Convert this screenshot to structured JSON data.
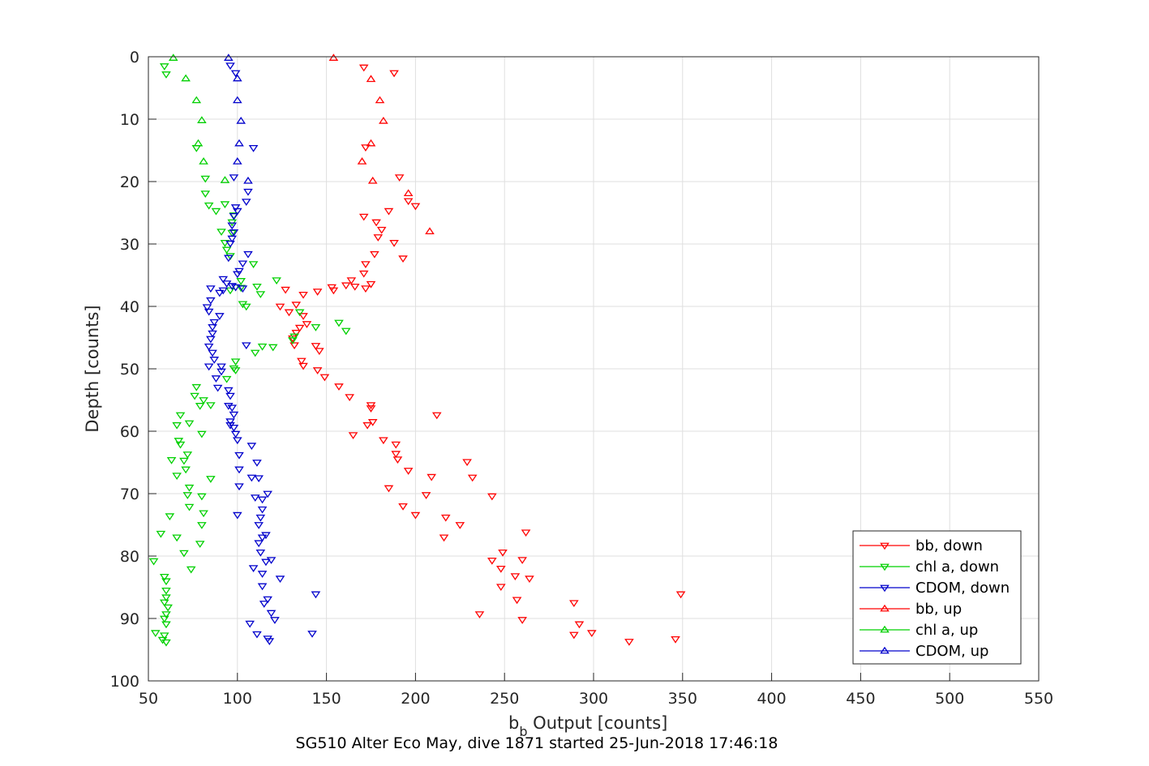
{
  "caption": "SG510 Alter Eco May, dive 1871 started 25-Jun-2018 17:46:18",
  "chart_data": {
    "type": "scatter",
    "xlabel_main": "b",
    "xlabel_sub": "b",
    "xlabel_rest": " Output [counts]",
    "ylabel": "Depth [counts]",
    "xlim": [
      50,
      550
    ],
    "ylim": [
      0,
      100
    ],
    "y_reversed": true,
    "grid": true,
    "legend_position": "bottom-right",
    "x_ticks": [
      50,
      100,
      150,
      200,
      250,
      300,
      350,
      400,
      450,
      500,
      550
    ],
    "y_ticks": [
      0,
      10,
      20,
      30,
      40,
      50,
      60,
      70,
      80,
      90,
      100
    ],
    "series": [
      {
        "name": "bb, down",
        "color": "#ff0000",
        "marker": "triangle-down",
        "points": [
          [
            171,
            1.7
          ],
          [
            188,
            2.6
          ],
          [
            172,
            14.5
          ],
          [
            191,
            19.3
          ],
          [
            196,
            23.1
          ],
          [
            185,
            24.7
          ],
          [
            200,
            23.9
          ],
          [
            171,
            25.6
          ],
          [
            178,
            26.5
          ],
          [
            181,
            27.7
          ],
          [
            179,
            28.9
          ],
          [
            188,
            29.8
          ],
          [
            193,
            32.3
          ],
          [
            177,
            31.6
          ],
          [
            172,
            33.2
          ],
          [
            171,
            34.7
          ],
          [
            164,
            35.8
          ],
          [
            166,
            36.8
          ],
          [
            161,
            36.6
          ],
          [
            175,
            36.4
          ],
          [
            172,
            37.1
          ],
          [
            153,
            36.9
          ],
          [
            154,
            37.4
          ],
          [
            137,
            38.1
          ],
          [
            145,
            37.6
          ],
          [
            127,
            37.3
          ],
          [
            133,
            39.7
          ],
          [
            124,
            40.0
          ],
          [
            129,
            40.9
          ],
          [
            137,
            41.5
          ],
          [
            139,
            42.8
          ],
          [
            135,
            43.4
          ],
          [
            133,
            44.2
          ],
          [
            131,
            45.1
          ],
          [
            132,
            46.2
          ],
          [
            144,
            46.3
          ],
          [
            146,
            47.1
          ],
          [
            136,
            48.7
          ],
          [
            137,
            49.5
          ],
          [
            145,
            50.2
          ],
          [
            149,
            51.3
          ],
          [
            157,
            52.8
          ],
          [
            163,
            54.5
          ],
          [
            175,
            55.8
          ],
          [
            175,
            56.3
          ],
          [
            212,
            57.4
          ],
          [
            173,
            59.0
          ],
          [
            176,
            58.5
          ],
          [
            165,
            60.6
          ],
          [
            182,
            61.4
          ],
          [
            189,
            62.1
          ],
          [
            189,
            63.6
          ],
          [
            190,
            64.5
          ],
          [
            196,
            66.3
          ],
          [
            229,
            64.9
          ],
          [
            232,
            67.4
          ],
          [
            209,
            67.3
          ],
          [
            185,
            69.1
          ],
          [
            243,
            70.4
          ],
          [
            206,
            70.2
          ],
          [
            193,
            72.0
          ],
          [
            200,
            73.4
          ],
          [
            217,
            73.8
          ],
          [
            225,
            75.0
          ],
          [
            262,
            76.2
          ],
          [
            216,
            77.0
          ],
          [
            249,
            79.4
          ],
          [
            243,
            80.7
          ],
          [
            260,
            80.6
          ],
          [
            248,
            82.0
          ],
          [
            256,
            83.2
          ],
          [
            264,
            83.6
          ],
          [
            248,
            84.9
          ],
          [
            257,
            87.0
          ],
          [
            289,
            87.5
          ],
          [
            236,
            89.3
          ],
          [
            260,
            90.2
          ],
          [
            292,
            90.9
          ],
          [
            299,
            92.3
          ],
          [
            289,
            92.6
          ],
          [
            320,
            93.7
          ],
          [
            346,
            93.3
          ],
          [
            349,
            86.1
          ]
        ]
      },
      {
        "name": "chl a, down",
        "color": "#00d000",
        "marker": "triangle-down",
        "points": [
          [
            59,
            1.5
          ],
          [
            60,
            2.8
          ],
          [
            77,
            14.6
          ],
          [
            82,
            19.5
          ],
          [
            82,
            21.9
          ],
          [
            84,
            23.8
          ],
          [
            93,
            23.6
          ],
          [
            88,
            24.7
          ],
          [
            98,
            25.4
          ],
          [
            97,
            26.5
          ],
          [
            91,
            28.0
          ],
          [
            97,
            28.2
          ],
          [
            93,
            29.8
          ],
          [
            94,
            30.9
          ],
          [
            96,
            31.9
          ],
          [
            109,
            33.2
          ],
          [
            102,
            35.9
          ],
          [
            122,
            35.8
          ],
          [
            111,
            36.8
          ],
          [
            102,
            37.0
          ],
          [
            96,
            37.4
          ],
          [
            113,
            38.0
          ],
          [
            103,
            39.6
          ],
          [
            105,
            40.0
          ],
          [
            135,
            40.9
          ],
          [
            144,
            43.3
          ],
          [
            157,
            42.6
          ],
          [
            161,
            43.9
          ],
          [
            132,
            44.8
          ],
          [
            131,
            45.4
          ],
          [
            114,
            46.4
          ],
          [
            120,
            46.5
          ],
          [
            110,
            47.4
          ],
          [
            99,
            48.8
          ],
          [
            99,
            50.2
          ],
          [
            98,
            49.9
          ],
          [
            94,
            51.6
          ],
          [
            77,
            52.9
          ],
          [
            76,
            54.3
          ],
          [
            81,
            55.0
          ],
          [
            79,
            55.9
          ],
          [
            85,
            55.8
          ],
          [
            68,
            57.4
          ],
          [
            66,
            59.0
          ],
          [
            73,
            58.7
          ],
          [
            80,
            60.4
          ],
          [
            67,
            61.5
          ],
          [
            68,
            62.1
          ],
          [
            72,
            63.7
          ],
          [
            63,
            64.6
          ],
          [
            70,
            64.7
          ],
          [
            71,
            66.1
          ],
          [
            66,
            67.1
          ],
          [
            85,
            67.6
          ],
          [
            73,
            69.0
          ],
          [
            72,
            70.2
          ],
          [
            80,
            70.4
          ],
          [
            73,
            72.1
          ],
          [
            81,
            73.1
          ],
          [
            62,
            73.6
          ],
          [
            80,
            75.0
          ],
          [
            57,
            76.4
          ],
          [
            66,
            77.0
          ],
          [
            79,
            78.0
          ],
          [
            70,
            79.5
          ],
          [
            53,
            80.8
          ],
          [
            74,
            82.1
          ],
          [
            59,
            83.3
          ],
          [
            60,
            84.0
          ],
          [
            60,
            85.5
          ],
          [
            60,
            86.6
          ],
          [
            59,
            87.4
          ],
          [
            61,
            88.2
          ],
          [
            60,
            89.3
          ],
          [
            59,
            90.0
          ],
          [
            60,
            90.9
          ],
          [
            54,
            92.3
          ],
          [
            59,
            92.7
          ],
          [
            58,
            93.4
          ],
          [
            60,
            93.8
          ]
        ]
      },
      {
        "name": "CDOM, down",
        "color": "#0000cc",
        "marker": "triangle-down",
        "points": [
          [
            96,
            1.4
          ],
          [
            99,
            2.6
          ],
          [
            109,
            14.6
          ],
          [
            98,
            19.3
          ],
          [
            106,
            21.6
          ],
          [
            105,
            23.2
          ],
          [
            99,
            24.1
          ],
          [
            100,
            24.7
          ],
          [
            98,
            25.5
          ],
          [
            97,
            27.0
          ],
          [
            98,
            28.1
          ],
          [
            97,
            29.1
          ],
          [
            96,
            29.9
          ],
          [
            106,
            31.6
          ],
          [
            103,
            33.1
          ],
          [
            95,
            32.2
          ],
          [
            101,
            34.3
          ],
          [
            100,
            34.8
          ],
          [
            92,
            35.6
          ],
          [
            94,
            36.3
          ],
          [
            97,
            36.7
          ],
          [
            99,
            36.9
          ],
          [
            103,
            37.1
          ],
          [
            85,
            37.1
          ],
          [
            92,
            37.4
          ],
          [
            90,
            37.8
          ],
          [
            85,
            39.0
          ],
          [
            83,
            40.1
          ],
          [
            84,
            40.8
          ],
          [
            90,
            41.5
          ],
          [
            87,
            42.5
          ],
          [
            86,
            43.3
          ],
          [
            86,
            44.3
          ],
          [
            85,
            45.2
          ],
          [
            84,
            46.4
          ],
          [
            105,
            46.2
          ],
          [
            86,
            47.4
          ],
          [
            87,
            48.5
          ],
          [
            84,
            49.6
          ],
          [
            91,
            49.6
          ],
          [
            91,
            50.4
          ],
          [
            88,
            51.5
          ],
          [
            89,
            53.0
          ],
          [
            95,
            53.4
          ],
          [
            96,
            54.3
          ],
          [
            95,
            55.9
          ],
          [
            97,
            56.2
          ],
          [
            98,
            57.3
          ],
          [
            96,
            58.4
          ],
          [
            96,
            59.0
          ],
          [
            98,
            59.4
          ],
          [
            99,
            60.4
          ],
          [
            100,
            61.4
          ],
          [
            108,
            62.3
          ],
          [
            101,
            63.8
          ],
          [
            111,
            65.0
          ],
          [
            101,
            66.1
          ],
          [
            108,
            67.4
          ],
          [
            112,
            67.5
          ],
          [
            101,
            68.8
          ],
          [
            117,
            70.0
          ],
          [
            110,
            70.6
          ],
          [
            114,
            70.9
          ],
          [
            114,
            72.5
          ],
          [
            100,
            73.4
          ],
          [
            113,
            73.8
          ],
          [
            112,
            75.0
          ],
          [
            116,
            76.6
          ],
          [
            114,
            77.0
          ],
          [
            112,
            77.9
          ],
          [
            113,
            79.4
          ],
          [
            119,
            80.6
          ],
          [
            116,
            80.9
          ],
          [
            109,
            81.9
          ],
          [
            114,
            82.8
          ],
          [
            124,
            83.6
          ],
          [
            114,
            84.8
          ],
          [
            117,
            86.9
          ],
          [
            115,
            87.6
          ],
          [
            119,
            89.1
          ],
          [
            121,
            90.2
          ],
          [
            107,
            90.8
          ],
          [
            111,
            92.5
          ],
          [
            117,
            93.2
          ],
          [
            118,
            93.6
          ],
          [
            142,
            92.4
          ],
          [
            144,
            86.1
          ]
        ]
      },
      {
        "name": "bb, up",
        "color": "#ff0000",
        "marker": "triangle-up",
        "points": [
          [
            154,
            0.2
          ],
          [
            175,
            3.6
          ],
          [
            180,
            7.0
          ],
          [
            182,
            10.3
          ],
          [
            175,
            13.9
          ],
          [
            170,
            16.8
          ],
          [
            176,
            19.9
          ],
          [
            196,
            21.9
          ],
          [
            208,
            28.0
          ]
        ]
      },
      {
        "name": "chl a, up",
        "color": "#00d000",
        "marker": "triangle-up",
        "points": [
          [
            64,
            0.2
          ],
          [
            71,
            3.5
          ],
          [
            77,
            7.0
          ],
          [
            80,
            10.2
          ],
          [
            78,
            13.9
          ],
          [
            81,
            16.8
          ],
          [
            93,
            19.8
          ]
        ]
      },
      {
        "name": "CDOM, up",
        "color": "#0000cc",
        "marker": "triangle-up",
        "points": [
          [
            95,
            0.2
          ],
          [
            100,
            3.5
          ],
          [
            100,
            7.0
          ],
          [
            102,
            10.3
          ],
          [
            101,
            13.9
          ],
          [
            100,
            16.8
          ],
          [
            106,
            19.9
          ]
        ]
      }
    ]
  }
}
